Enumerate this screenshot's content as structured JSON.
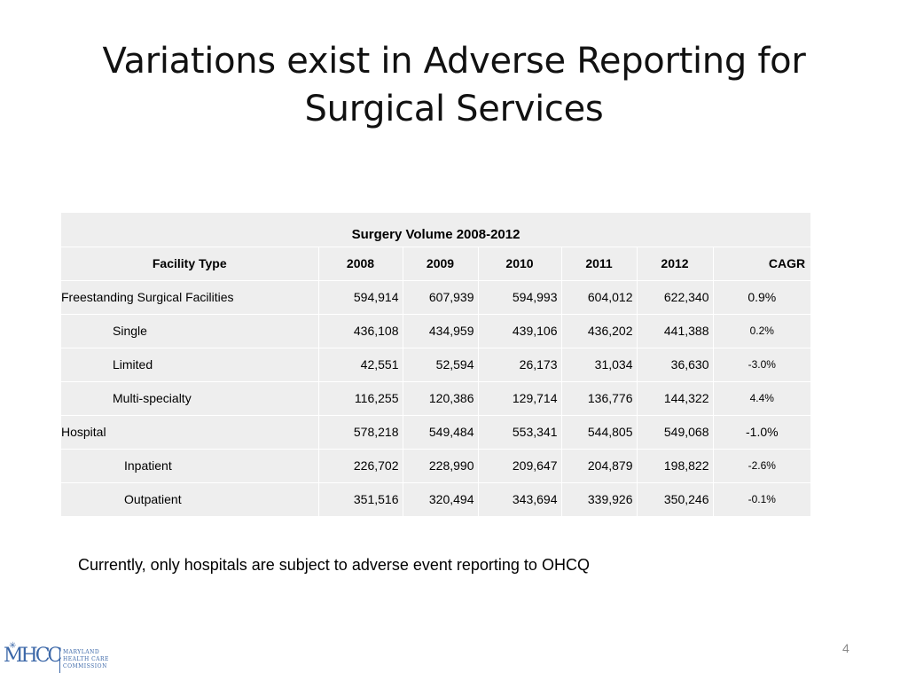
{
  "slide": {
    "title": "Variations exist in Adverse Reporting for Surgical Services",
    "note": "Currently, only hospitals are subject to adverse event reporting to OHCQ",
    "page_number": "4"
  },
  "table": {
    "caption": "Surgery Volume 2008-2012",
    "headers": [
      "Facility Type",
      "2008",
      "2009",
      "2010",
      "2011",
      "2012",
      "CAGR"
    ],
    "rows": [
      {
        "label": "Freestanding Surgical Facilities",
        "values": [
          "594,914",
          "607,939",
          "594,993",
          "604,012",
          "622,340"
        ],
        "cagr": "0.9%"
      },
      {
        "label": "Single",
        "values": [
          "436,108",
          "434,959",
          "439,106",
          "436,202",
          "441,388"
        ],
        "cagr": "0.2%"
      },
      {
        "label": "Limited",
        "values": [
          "42,551",
          "52,594",
          "26,173",
          "31,034",
          "36,630"
        ],
        "cagr": "-3.0%"
      },
      {
        "label": "Multi-specialty",
        "values": [
          "116,255",
          "120,386",
          "129,714",
          "136,776",
          "144,322"
        ],
        "cagr": "4.4%"
      },
      {
        "label": "Hospital",
        "values": [
          "578,218",
          "549,484",
          "553,341",
          "544,805",
          "549,068"
        ],
        "cagr": "-1.0%"
      },
      {
        "label": "Inpatient",
        "values": [
          "226,702",
          "228,990",
          "209,647",
          "204,879",
          "198,822"
        ],
        "cagr": "-2.6%"
      },
      {
        "label": "Outpatient",
        "values": [
          "351,516",
          "320,494",
          "343,694",
          "339,926",
          "350,246"
        ],
        "cagr": "-0.1%"
      }
    ]
  },
  "logo": {
    "mark": "MHCC",
    "text_lines": [
      "MARYLAND",
      "HEALTH CARE",
      "COMMISSION"
    ],
    "color": "#3b67a8"
  }
}
